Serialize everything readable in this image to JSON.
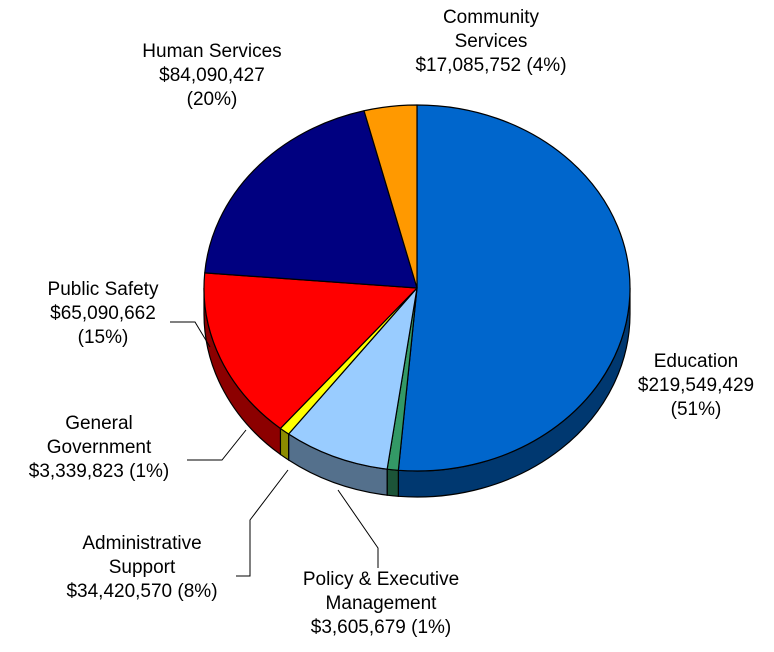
{
  "chart_data": {
    "type": "pie",
    "style": "3d",
    "slices": [
      {
        "name": "Education",
        "value": 219549429,
        "amount_label": "$219,549,429",
        "percent_label": "(51%)",
        "color": "#0066CC"
      },
      {
        "name": "Policy & Executive Management",
        "value": 3605679,
        "amount_label": "$3,605,679 (1%)",
        "color": "#339966"
      },
      {
        "name": "Administrative Support",
        "value": 34420570,
        "amount_label": "$34,420,570 (8%)",
        "color": "#99CCFF"
      },
      {
        "name": "General Government",
        "value": 3339823,
        "amount_label": "$3,339,823 (1%)",
        "color": "#FFFF00"
      },
      {
        "name": "Public Safety",
        "value": 65090662,
        "amount_label": "$65,090,662",
        "percent_label": "(15%)",
        "color": "#FF0000"
      },
      {
        "name": "Human Services",
        "value": 84090427,
        "amount_label": "$84,090,427",
        "percent_label": "(20%)",
        "color": "#000080"
      },
      {
        "name": "Community Services",
        "value": 17085752,
        "amount_label": "$17,085,752 (4%)",
        "color": "#FF9900"
      }
    ],
    "label_lines": {
      "Education": [
        "Education",
        "$219,549,429",
        "(51%)"
      ],
      "Policy & Executive Management": [
        "Policy & Executive",
        "Management",
        "$3,605,679 (1%)"
      ],
      "Administrative Support": [
        "Administrative",
        "Support",
        "$34,420,570 (8%)"
      ],
      "General Government": [
        "General",
        "Government",
        "$3,339,823 (1%)"
      ],
      "Public Safety": [
        "Public Safety",
        "$65,090,662",
        "(15%)"
      ],
      "Human Services": [
        "Human Services",
        "$84,090,427",
        "(20%)"
      ],
      "Community Services": [
        "Community",
        "Services",
        "$17,085,752 (4%)"
      ]
    },
    "title": "",
    "legend": "none"
  }
}
